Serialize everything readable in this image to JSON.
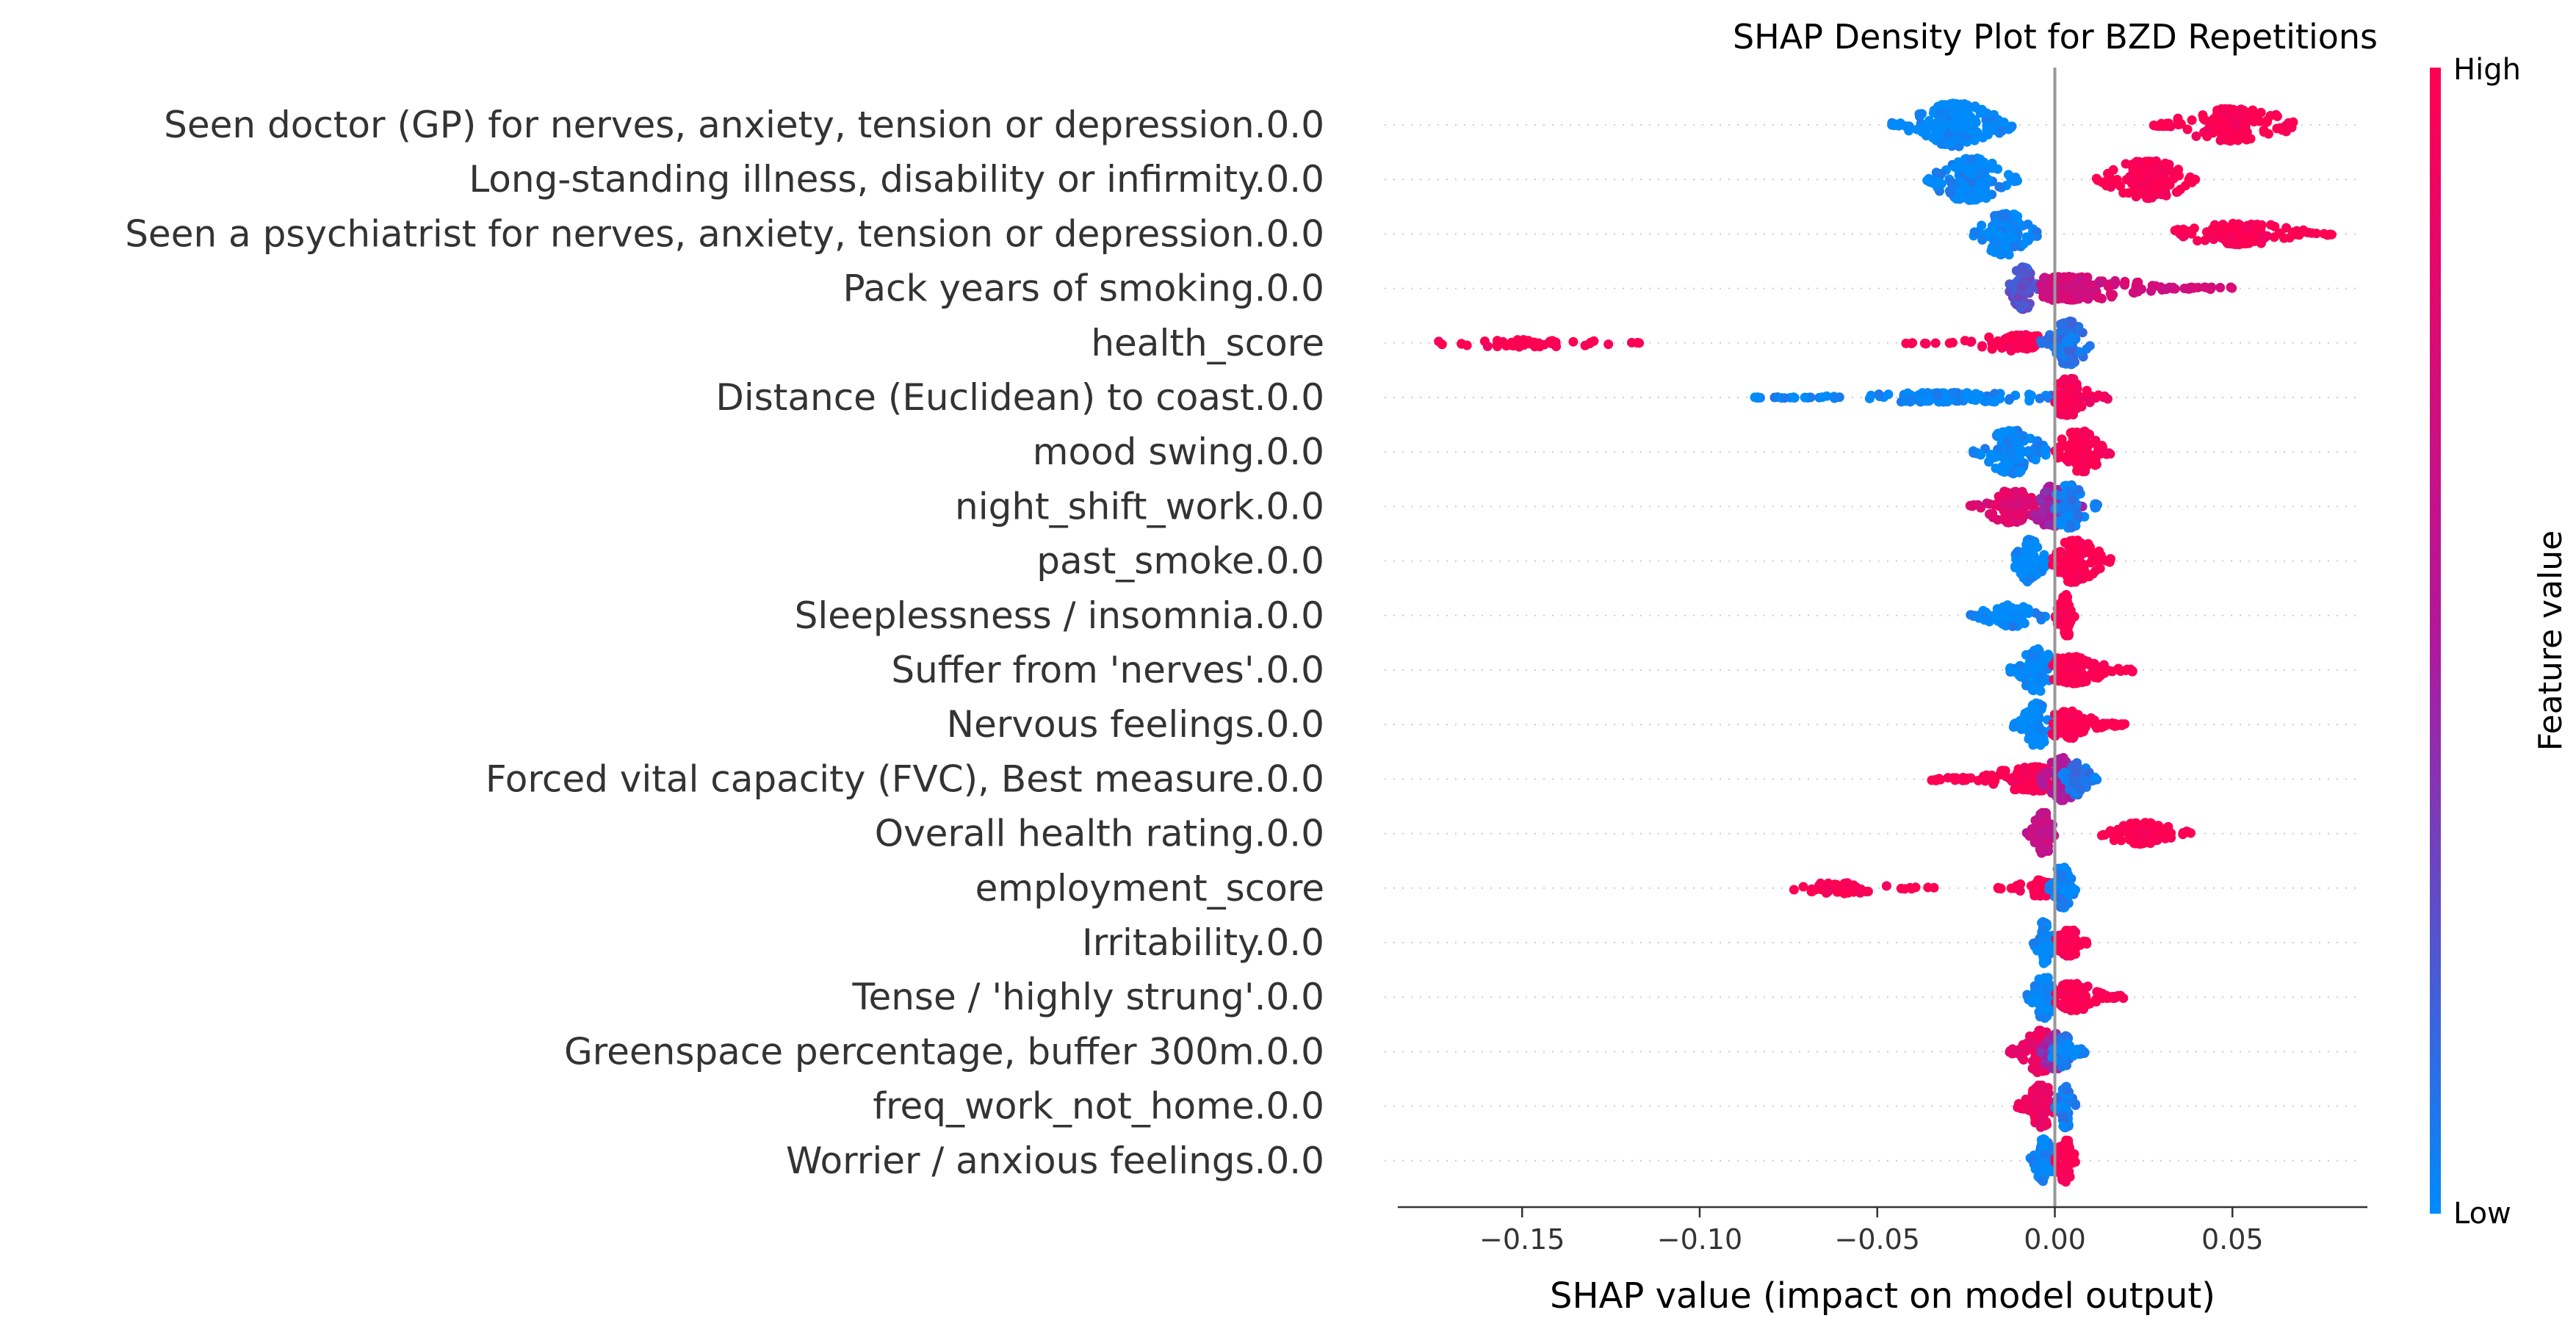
{
  "chart_data": {
    "type": "scatter",
    "subtype": "shap-beeswarm",
    "title": "SHAP Density Plot for BZD Repetitions",
    "xlabel": "SHAP value (impact on model output)",
    "xlim": [
      -0.185,
      0.088
    ],
    "xticks": [
      -0.15,
      -0.1,
      -0.05,
      0.0,
      0.05
    ],
    "xtick_labels": [
      "−0.15",
      "−0.10",
      "−0.05",
      "0.00",
      "0.05"
    ],
    "colorbar": {
      "title": "Feature value",
      "high_label": "High",
      "low_label": "Low",
      "low_color": "#008bfb",
      "high_color": "#ff0052"
    },
    "zero_line_color": "#999999",
    "features": [
      {
        "name": "Seen doctor (GP) for nerves, anxiety, tension or depression.0.0",
        "clusters": [
          {
            "lo": -0.046,
            "hi": -0.012,
            "center": -0.028,
            "fv": 0.0,
            "n": 220,
            "h": 0.8
          },
          {
            "lo": 0.027,
            "hi": 0.068,
            "center": 0.05,
            "fv": 1.0,
            "n": 200,
            "h": 0.6
          }
        ]
      },
      {
        "name": "Long-standing illness, disability or infirmity.0.0",
        "clusters": [
          {
            "lo": -0.036,
            "hi": -0.01,
            "center": -0.024,
            "fv": 0.0,
            "n": 200,
            "h": 0.8
          },
          {
            "lo": 0.011,
            "hi": 0.04,
            "center": 0.026,
            "fv": 1.0,
            "n": 180,
            "h": 0.7
          }
        ]
      },
      {
        "name": "Seen a psychiatrist for nerves, anxiety, tension or depression.0.0",
        "clusters": [
          {
            "lo": -0.023,
            "hi": -0.005,
            "center": -0.014,
            "fv": 0.0,
            "n": 160,
            "h": 0.8
          },
          {
            "lo": 0.033,
            "hi": 0.078,
            "center": 0.052,
            "fv": 1.0,
            "n": 180,
            "h": 0.4
          }
        ]
      },
      {
        "name": "Pack years of smoking.0.0",
        "clusters": [
          {
            "lo": -0.013,
            "hi": -0.004,
            "center": -0.009,
            "fv": 0.25,
            "n": 130,
            "h": 0.8
          },
          {
            "lo": -0.004,
            "hi": 0.051,
            "center": 0.004,
            "fv": 0.7,
            "n": 220,
            "h": 0.45
          }
        ]
      },
      {
        "name": "health_score",
        "clusters": [
          {
            "lo": -0.176,
            "hi": -0.115,
            "center": -0.15,
            "fv": 1.0,
            "n": 60,
            "h": 0.15
          },
          {
            "lo": -0.042,
            "hi": -0.004,
            "center": -0.01,
            "fv": 1.0,
            "n": 80,
            "h": 0.3
          },
          {
            "lo": -0.004,
            "hi": 0.01,
            "center": 0.004,
            "fv": 0.1,
            "n": 120,
            "h": 0.8
          }
        ]
      },
      {
        "name": "Distance (Euclidean) to coast.0.0",
        "clusters": [
          {
            "lo": -0.085,
            "hi": 0.0,
            "center": -0.03,
            "fv": 0.0,
            "n": 180,
            "h": 0.18
          },
          {
            "lo": 0.0,
            "hi": 0.015,
            "center": 0.004,
            "fv": 0.95,
            "n": 110,
            "h": 0.7
          }
        ]
      },
      {
        "name": "mood swing.0.0",
        "clusters": [
          {
            "lo": -0.023,
            "hi": -0.002,
            "center": -0.012,
            "fv": 0.0,
            "n": 150,
            "h": 0.8
          },
          {
            "lo": 0.0,
            "hi": 0.016,
            "center": 0.007,
            "fv": 1.0,
            "n": 150,
            "h": 0.8
          }
        ]
      },
      {
        "name": "night_shift_work.0.0",
        "clusters": [
          {
            "lo": -0.024,
            "hi": -0.004,
            "center": -0.012,
            "fv": 0.8,
            "n": 140,
            "h": 0.6
          },
          {
            "lo": -0.006,
            "hi": 0.008,
            "center": -0.001,
            "fv": 0.45,
            "n": 100,
            "h": 0.75
          },
          {
            "lo": 0.0,
            "hi": 0.012,
            "center": 0.004,
            "fv": 0.05,
            "n": 90,
            "h": 0.8
          }
        ]
      },
      {
        "name": "past_smoke.0.0",
        "clusters": [
          {
            "lo": -0.012,
            "hi": -0.002,
            "center": -0.007,
            "fv": 0.0,
            "n": 110,
            "h": 0.8
          },
          {
            "lo": -0.002,
            "hi": 0.016,
            "center": 0.006,
            "fv": 1.0,
            "n": 150,
            "h": 0.8
          }
        ]
      },
      {
        "name": "Sleeplessness / insomnia.0.0",
        "clusters": [
          {
            "lo": -0.024,
            "hi": -0.001,
            "center": -0.012,
            "fv": 0.0,
            "n": 110,
            "h": 0.4
          },
          {
            "lo": 0.0,
            "hi": 0.006,
            "center": 0.003,
            "fv": 1.0,
            "n": 80,
            "h": 0.8
          }
        ]
      },
      {
        "name": "Suffer from 'nerves'.0.0",
        "clusters": [
          {
            "lo": -0.013,
            "hi": -0.001,
            "center": -0.005,
            "fv": 0.0,
            "n": 120,
            "h": 0.8
          },
          {
            "lo": -0.001,
            "hi": 0.023,
            "center": 0.005,
            "fv": 1.0,
            "n": 140,
            "h": 0.5
          }
        ]
      },
      {
        "name": "Nervous feelings.0.0",
        "clusters": [
          {
            "lo": -0.012,
            "hi": -0.001,
            "center": -0.005,
            "fv": 0.0,
            "n": 110,
            "h": 0.8
          },
          {
            "lo": -0.001,
            "hi": 0.02,
            "center": 0.004,
            "fv": 1.0,
            "n": 130,
            "h": 0.5
          }
        ]
      },
      {
        "name": "Forced vital capacity (FVC), Best measure.0.0",
        "clusters": [
          {
            "lo": -0.035,
            "hi": -0.002,
            "center": -0.006,
            "fv": 1.0,
            "n": 170,
            "h": 0.45
          },
          {
            "lo": -0.004,
            "hi": 0.01,
            "center": 0.002,
            "fv": 0.5,
            "n": 120,
            "h": 0.8
          },
          {
            "lo": 0.002,
            "hi": 0.012,
            "center": 0.006,
            "fv": 0.1,
            "n": 70,
            "h": 0.6
          }
        ]
      },
      {
        "name": "Overall health rating.0.0",
        "clusters": [
          {
            "lo": -0.008,
            "hi": 0.0,
            "center": -0.003,
            "fv": 0.6,
            "n": 80,
            "h": 0.8
          },
          {
            "lo": 0.012,
            "hi": 0.04,
            "center": 0.025,
            "fv": 1.0,
            "n": 120,
            "h": 0.4
          }
        ]
      },
      {
        "name": "employment_score",
        "clusters": [
          {
            "lo": -0.078,
            "hi": -0.033,
            "center": -0.06,
            "fv": 1.0,
            "n": 60,
            "h": 0.2
          },
          {
            "lo": -0.016,
            "hi": 0.0,
            "center": -0.004,
            "fv": 1.0,
            "n": 60,
            "h": 0.3
          },
          {
            "lo": -0.002,
            "hi": 0.006,
            "center": 0.002,
            "fv": 0.05,
            "n": 110,
            "h": 0.8
          }
        ]
      },
      {
        "name": "Irritability.0.0",
        "clusters": [
          {
            "lo": -0.006,
            "hi": 0.0,
            "center": -0.003,
            "fv": 0.0,
            "n": 90,
            "h": 0.8
          },
          {
            "lo": 0.0,
            "hi": 0.009,
            "center": 0.004,
            "fv": 1.0,
            "n": 80,
            "h": 0.5
          }
        ]
      },
      {
        "name": "Tense / 'highly strung'.0.0",
        "clusters": [
          {
            "lo": -0.008,
            "hi": 0.0,
            "center": -0.003,
            "fv": 0.0,
            "n": 90,
            "h": 0.8
          },
          {
            "lo": 0.0,
            "hi": 0.02,
            "center": 0.005,
            "fv": 1.0,
            "n": 120,
            "h": 0.5
          }
        ]
      },
      {
        "name": "Greenspace percentage, buffer 300m.0.0",
        "clusters": [
          {
            "lo": -0.013,
            "hi": 0.0,
            "center": -0.004,
            "fv": 0.85,
            "n": 120,
            "h": 0.8
          },
          {
            "lo": -0.004,
            "hi": 0.004,
            "center": 0.0,
            "fv": 0.4,
            "n": 80,
            "h": 0.7
          },
          {
            "lo": -0.001,
            "hi": 0.009,
            "center": 0.003,
            "fv": 0.05,
            "n": 70,
            "h": 0.6
          }
        ]
      },
      {
        "name": "freq_work_not_home.0.0",
        "clusters": [
          {
            "lo": -0.011,
            "hi": 0.0,
            "center": -0.004,
            "fv": 0.9,
            "n": 120,
            "h": 0.8
          },
          {
            "lo": 0.0,
            "hi": 0.006,
            "center": 0.003,
            "fv": 0.05,
            "n": 100,
            "h": 0.8
          }
        ]
      },
      {
        "name": "Worrier / anxious feelings.0.0",
        "clusters": [
          {
            "lo": -0.007,
            "hi": 0.0,
            "center": -0.003,
            "fv": 0.0,
            "n": 90,
            "h": 0.8
          },
          {
            "lo": 0.0,
            "hi": 0.006,
            "center": 0.003,
            "fv": 1.0,
            "n": 80,
            "h": 0.8
          }
        ]
      }
    ]
  }
}
